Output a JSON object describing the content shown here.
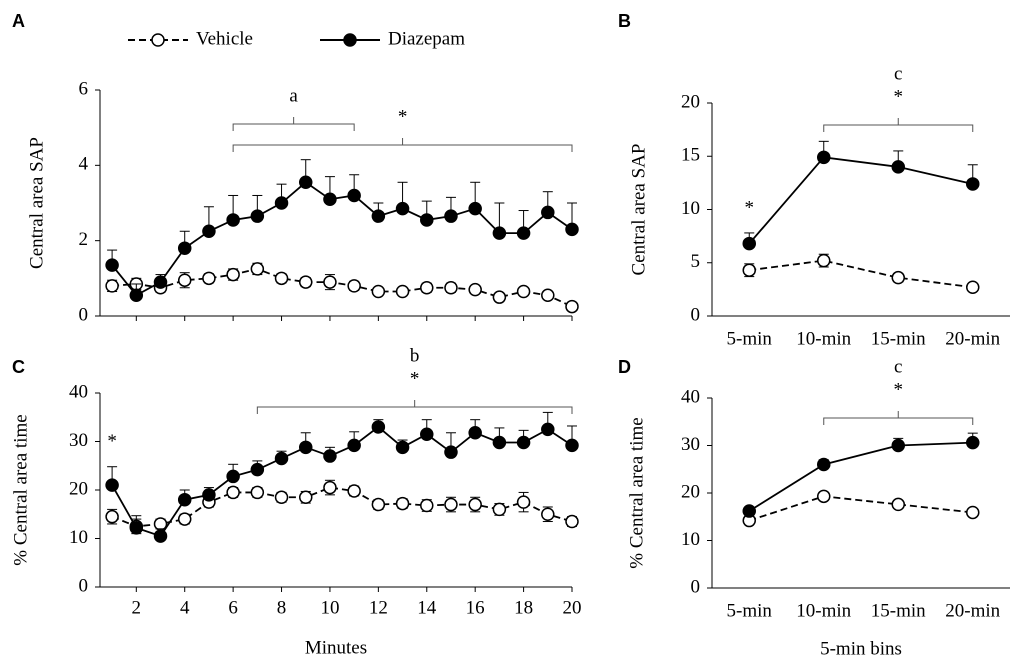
{
  "legend": {
    "series": [
      {
        "name": "Vehicle",
        "line_style": "dashed",
        "marker": "open"
      },
      {
        "name": "Diazepam",
        "line_style": "solid",
        "marker": "filled"
      }
    ]
  },
  "chart_data": [
    {
      "type": "line",
      "panel": "A",
      "ylabel": "Central area SAP",
      "x": [
        1,
        2,
        3,
        4,
        5,
        6,
        7,
        8,
        9,
        10,
        11,
        12,
        13,
        14,
        15,
        16,
        17,
        18,
        19,
        20
      ],
      "xlim": [
        0.5,
        20
      ],
      "xticks": [
        2,
        4,
        6,
        8,
        10,
        12,
        14,
        16,
        18,
        20
      ],
      "ylim": [
        0,
        6
      ],
      "yticks": [
        0,
        2,
        4,
        6
      ],
      "color": "#000000",
      "series": [
        {
          "line_style": "dashed",
          "marker": "open",
          "error_direction": "both",
          "values": [
            0.8,
            0.85,
            0.75,
            0.95,
            1.0,
            1.1,
            1.25,
            1.0,
            0.9,
            0.9,
            0.8,
            0.65,
            0.65,
            0.75,
            0.75,
            0.7,
            0.5,
            0.65,
            0.55,
            0.25
          ],
          "errors": [
            0.15,
            0.15,
            0.12,
            0.2,
            0.12,
            0.15,
            0.15,
            0.12,
            0.12,
            0.2,
            0.12,
            0.08,
            0.08,
            0.12,
            0.12,
            0.1,
            0.08,
            0.1,
            0.1,
            0.05
          ]
        },
        {
          "line_style": "solid",
          "marker": "filled",
          "error_direction": "up",
          "values": [
            1.35,
            0.55,
            0.9,
            1.8,
            2.25,
            2.55,
            2.65,
            3.0,
            3.55,
            3.1,
            3.2,
            2.65,
            2.85,
            2.55,
            2.65,
            2.85,
            2.2,
            2.2,
            2.75,
            2.3
          ],
          "errors": [
            0.4,
            0.3,
            0.2,
            0.45,
            0.65,
            0.65,
            0.55,
            0.5,
            0.6,
            0.6,
            0.55,
            0.35,
            0.7,
            0.5,
            0.5,
            0.7,
            0.8,
            0.6,
            0.55,
            0.7
          ]
        }
      ],
      "brackets": [
        {
          "labels": [
            "*"
          ],
          "span": [
            6,
            20
          ]
        },
        {
          "labels": [
            "a"
          ],
          "span": [
            6,
            11
          ]
        }
      ],
      "point_marks": []
    },
    {
      "type": "line",
      "panel": "B",
      "ylabel": "Central area SAP",
      "categories": [
        "5-min",
        "10-min",
        "15-min",
        "20-min"
      ],
      "ylim": [
        0,
        20
      ],
      "yticks": [
        0,
        5,
        10,
        15,
        20
      ],
      "color": "#000000",
      "series": [
        {
          "line_style": "dashed",
          "marker": "open",
          "error_direction": "both",
          "values": [
            4.3,
            5.2,
            3.6,
            2.7
          ],
          "errors": [
            0.6,
            0.6,
            0.4,
            0.3
          ]
        },
        {
          "line_style": "solid",
          "marker": "filled",
          "error_direction": "up",
          "values": [
            6.8,
            14.9,
            14.0,
            12.4
          ],
          "errors": [
            1.0,
            1.5,
            1.5,
            1.8
          ]
        }
      ],
      "brackets": [
        {
          "labels": [
            "c",
            "*"
          ],
          "span": [
            "10-min",
            "20-min"
          ]
        }
      ],
      "point_marks": [
        {
          "label": "*",
          "at": "5-min"
        }
      ]
    },
    {
      "type": "line",
      "panel": "C",
      "ylabel": "% Central area time",
      "xlabel": "Minutes",
      "x": [
        1,
        2,
        3,
        4,
        5,
        6,
        7,
        8,
        9,
        10,
        11,
        12,
        13,
        14,
        15,
        16,
        17,
        18,
        19,
        20
      ],
      "xlim": [
        0.5,
        20
      ],
      "xticks": [
        2,
        4,
        6,
        8,
        10,
        12,
        14,
        16,
        18,
        20
      ],
      "ylim": [
        0,
        40
      ],
      "yticks": [
        0,
        10,
        20,
        30,
        40
      ],
      "color": "#000000",
      "series": [
        {
          "line_style": "dashed",
          "marker": "open",
          "error_direction": "both",
          "values": [
            14.5,
            12.5,
            13,
            14,
            17.5,
            19.5,
            19.5,
            18.5,
            18.5,
            20.5,
            19.8,
            17,
            17.2,
            16.8,
            17,
            17,
            16,
            17.5,
            15,
            13.5
          ],
          "errors": [
            1.5,
            1.5,
            1,
            1,
            1,
            1,
            1,
            1,
            1.2,
            1.5,
            1,
            1,
            1,
            1.2,
            1.5,
            1.5,
            1.2,
            2,
            1.5,
            1
          ]
        },
        {
          "line_style": "solid",
          "marker": "filled",
          "error_direction": "up",
          "values": [
            21,
            12.2,
            10.5,
            18,
            19,
            22.8,
            24.2,
            26.5,
            28.8,
            27,
            29.2,
            33,
            28.8,
            31.5,
            27.8,
            31.8,
            29.8,
            29.8,
            32.5,
            29.2
          ],
          "errors": [
            3.8,
            2.5,
            1.5,
            2,
            1.5,
            2.5,
            1.8,
            1.5,
            3,
            1.8,
            2.8,
            1.5,
            1.5,
            3,
            4,
            2.7,
            3,
            2.5,
            3.5,
            4
          ]
        }
      ],
      "brackets": [
        {
          "labels": [
            "b",
            "*"
          ],
          "span": [
            7,
            20
          ]
        }
      ],
      "point_marks": [
        {
          "label": "*",
          "at": 1
        }
      ]
    },
    {
      "type": "line",
      "panel": "D",
      "ylabel": "% Central area time",
      "xlabel": "5-min bins",
      "categories": [
        "5-min",
        "10-min",
        "15-min",
        "20-min"
      ],
      "ylim": [
        0,
        40
      ],
      "yticks": [
        0,
        10,
        20,
        30,
        40
      ],
      "color": "#000000",
      "series": [
        {
          "line_style": "dashed",
          "marker": "open",
          "error_direction": "both",
          "values": [
            14.2,
            19.3,
            17.6,
            15.9
          ],
          "errors": [
            0.5,
            0.5,
            0.5,
            0.5
          ]
        },
        {
          "line_style": "solid",
          "marker": "filled",
          "error_direction": "up",
          "values": [
            16.2,
            26.0,
            30.0,
            30.6
          ],
          "errors": [
            0.6,
            1.0,
            1.5,
            2.0
          ]
        }
      ],
      "brackets": [
        {
          "labels": [
            "c",
            "*"
          ],
          "span": [
            "10-min",
            "20-min"
          ]
        }
      ],
      "point_marks": []
    }
  ]
}
